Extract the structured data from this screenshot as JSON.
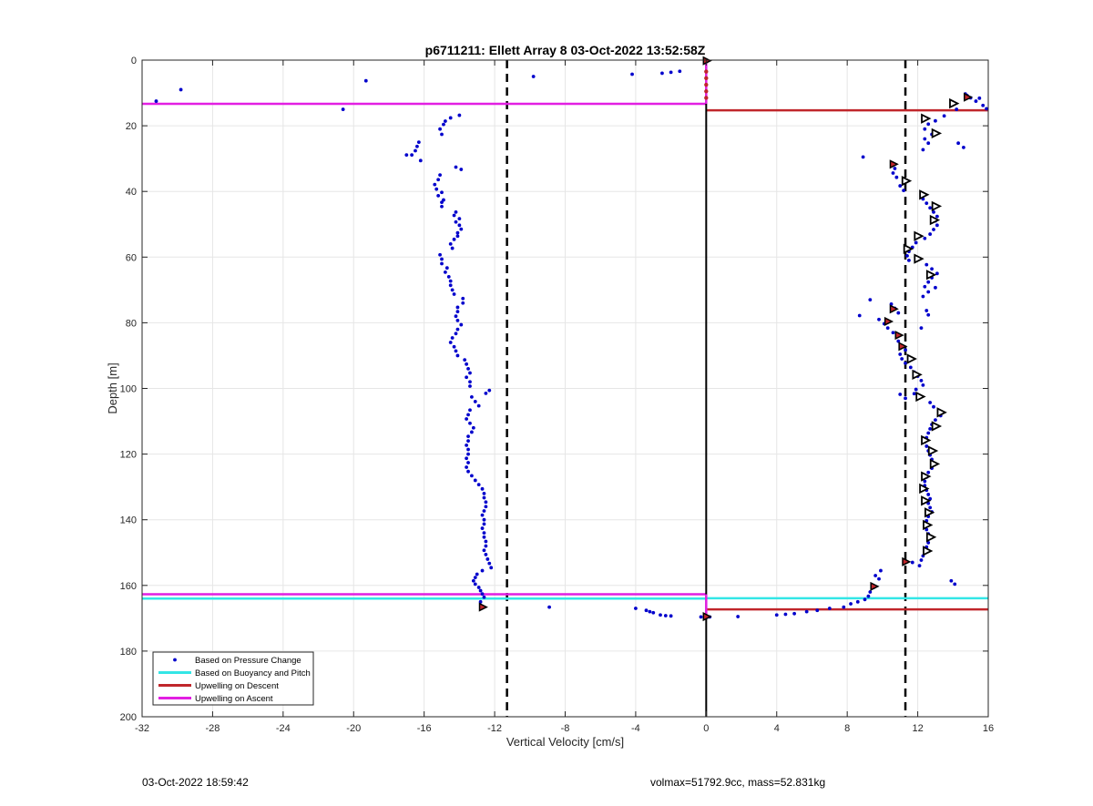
{
  "footer": {
    "timestamp": "03-Oct-2022 18:59:42",
    "info": "volmax=51792.9cc, mass=52.831kg"
  },
  "colors": {
    "pressure": "#0000cc",
    "buoyancy": "#33e6e6",
    "descent": "#c0262b",
    "ascent": "#e21fe2",
    "grid": "#e6e6e6"
  },
  "chart_data": {
    "type": "scatter",
    "title": "p6711211: Ellett Array 8 03-Oct-2022 13:52:58Z",
    "xlabel": "Vertical Velocity [cm/s]",
    "ylabel": "Depth [m]",
    "xlim": [
      -32,
      16
    ],
    "ylim": [
      0,
      200
    ],
    "y_reversed": true,
    "grid": true,
    "xticks": [
      -32,
      -28,
      -24,
      -20,
      -16,
      -12,
      -8,
      -4,
      0,
      4,
      8,
      12,
      16
    ],
    "yticks": [
      0,
      20,
      40,
      60,
      80,
      100,
      120,
      140,
      160,
      180,
      200
    ],
    "xtick_labels": [
      "-32",
      "-28",
      "-24",
      "-20",
      "-16",
      "-12",
      "-8",
      "-4",
      "0",
      "4",
      "8",
      "12",
      "16"
    ],
    "ytick_labels": [
      "0",
      "20",
      "40",
      "60",
      "80",
      "100",
      "120",
      "140",
      "160",
      "180",
      "200"
    ],
    "legend_position": "bottom-left",
    "legend": [
      {
        "label": "Based on Pressure Change",
        "style": "dot",
        "color": "#0000cc"
      },
      {
        "label": "Based on Buoyancy and Pitch",
        "style": "line",
        "color": "#33e6e6"
      },
      {
        "label": "Upwelling on Descent",
        "style": "line",
        "color": "#c0262b"
      },
      {
        "label": "Upwelling on Ascent",
        "style": "line",
        "color": "#e21fe2"
      }
    ],
    "pressure_points_ascent": [
      [
        -31.2,
        12.5
      ],
      [
        -29.8,
        9
      ],
      [
        -20.6,
        15
      ],
      [
        -19.3,
        6.3
      ],
      [
        -14.0,
        16.8
      ],
      [
        -14.5,
        17.6
      ],
      [
        -14.8,
        18.6
      ],
      [
        -14.9,
        19.6
      ],
      [
        -15.1,
        21.0
      ],
      [
        -15.0,
        22.6
      ],
      [
        -16.3,
        25.0
      ],
      [
        -16.4,
        26.3
      ],
      [
        -16.5,
        27.6
      ],
      [
        -16.7,
        28.9
      ],
      [
        -17.0,
        28.9
      ],
      [
        -16.2,
        30.6
      ],
      [
        -14.2,
        32.6
      ],
      [
        -13.9,
        33.3
      ],
      [
        -15.1,
        35.0
      ],
      [
        -15.2,
        36.4
      ],
      [
        -15.4,
        37.9
      ],
      [
        -15.3,
        39.3
      ],
      [
        -15.0,
        40.3
      ],
      [
        -15.2,
        41.3
      ],
      [
        -14.9,
        42.6
      ],
      [
        -15.0,
        43.3
      ],
      [
        -15.0,
        44.6
      ],
      [
        -14.2,
        46.3
      ],
      [
        -14.3,
        47.3
      ],
      [
        -14.0,
        48.3
      ],
      [
        -14.2,
        49.3
      ],
      [
        -14.0,
        50.3
      ],
      [
        -13.9,
        51.5
      ],
      [
        -14.1,
        52.6
      ],
      [
        -14.1,
        53.6
      ],
      [
        -14.3,
        54.6
      ],
      [
        -14.5,
        56.0
      ],
      [
        -14.4,
        57.3
      ],
      [
        -15.1,
        59.3
      ],
      [
        -15.0,
        60.6
      ],
      [
        -15.0,
        62.0
      ],
      [
        -14.7,
        63.3
      ],
      [
        -14.8,
        64.6
      ],
      [
        -14.6,
        66.0
      ],
      [
        -14.5,
        67.3
      ],
      [
        -14.5,
        68.6
      ],
      [
        -14.4,
        70.0
      ],
      [
        -14.3,
        71.3
      ],
      [
        -13.8,
        72.6
      ],
      [
        -13.8,
        74.0
      ],
      [
        -14.1,
        75.3
      ],
      [
        -14.1,
        76.6
      ],
      [
        -14.2,
        78.0
      ],
      [
        -14.1,
        79.3
      ],
      [
        -13.9,
        80.6
      ],
      [
        -14.1,
        82.0
      ],
      [
        -14.2,
        83.3
      ],
      [
        -14.4,
        84.6
      ],
      [
        -14.5,
        86.0
      ],
      [
        -14.3,
        87.3
      ],
      [
        -14.2,
        88.6
      ],
      [
        -14.1,
        90.0
      ],
      [
        -13.7,
        91.3
      ],
      [
        -13.6,
        92.6
      ],
      [
        -13.5,
        94.0
      ],
      [
        -13.4,
        95.3
      ],
      [
        -13.6,
        96.6
      ],
      [
        -13.4,
        98.0
      ],
      [
        -13.4,
        99.3
      ],
      [
        -12.3,
        100.6
      ],
      [
        -12.5,
        101.5
      ],
      [
        -13.3,
        102.6
      ],
      [
        -13.1,
        104.0
      ],
      [
        -12.9,
        105.3
      ],
      [
        -13.4,
        106.6
      ],
      [
        -13.5,
        108.0
      ],
      [
        -13.6,
        109.3
      ],
      [
        -13.4,
        110.6
      ],
      [
        -13.2,
        112.0
      ],
      [
        -13.3,
        113.3
      ],
      [
        -13.5,
        114.6
      ],
      [
        -13.5,
        116.0
      ],
      [
        -13.6,
        117.3
      ],
      [
        -13.5,
        118.6
      ],
      [
        -13.5,
        120.0
      ],
      [
        -13.6,
        121.3
      ],
      [
        -13.5,
        122.6
      ],
      [
        -13.6,
        124.0
      ],
      [
        -13.5,
        125.3
      ],
      [
        -13.3,
        126.6
      ],
      [
        -13.1,
        128.0
      ],
      [
        -12.9,
        129.3
      ],
      [
        -12.7,
        130.6
      ],
      [
        -12.6,
        132.0
      ],
      [
        -12.6,
        133.3
      ],
      [
        -12.5,
        134.6
      ],
      [
        -12.5,
        136.0
      ],
      [
        -12.6,
        137.3
      ],
      [
        -12.7,
        138.6
      ],
      [
        -12.6,
        140.0
      ],
      [
        -12.6,
        141.3
      ],
      [
        -12.7,
        142.6
      ],
      [
        -12.6,
        144.0
      ],
      [
        -12.6,
        145.3
      ],
      [
        -12.5,
        146.6
      ],
      [
        -12.5,
        148.0
      ],
      [
        -12.6,
        149.3
      ],
      [
        -12.5,
        150.6
      ],
      [
        -12.4,
        152.0
      ],
      [
        -12.3,
        153.3
      ],
      [
        -12.2,
        154.6
      ],
      [
        -12.7,
        155.5
      ],
      [
        -13.0,
        156.6
      ],
      [
        -13.1,
        157.6
      ],
      [
        -13.2,
        158.6
      ],
      [
        -13.1,
        159.6
      ],
      [
        -12.9,
        160.6
      ],
      [
        -12.8,
        161.6
      ],
      [
        -12.7,
        162.6
      ],
      [
        -12.6,
        163.6
      ],
      [
        -12.8,
        165.0
      ],
      [
        -12.7,
        166.4
      ],
      [
        -8.9,
        166.6
      ],
      [
        -4.0,
        167.0
      ],
      [
        -3.4,
        167.6
      ],
      [
        -3.2,
        168.0
      ],
      [
        -3.0,
        168.3
      ],
      [
        -2.6,
        169.0
      ],
      [
        -2.3,
        169.2
      ],
      [
        -2.0,
        169.3
      ],
      [
        -0.3,
        169.6
      ],
      [
        -9.8,
        5.0
      ],
      [
        -4.2,
        4.3
      ],
      [
        -2.5,
        4.0
      ],
      [
        -2.0,
        3.7
      ],
      [
        -1.5,
        3.4
      ]
    ],
    "pressure_points_descent": [
      [
        14.7,
        10.3
      ],
      [
        14.8,
        10.8
      ],
      [
        15.0,
        11.5
      ],
      [
        15.3,
        12.5
      ],
      [
        15.7,
        13.8
      ],
      [
        15.9,
        14.8
      ],
      [
        15.5,
        11.6
      ],
      [
        14.2,
        15.0
      ],
      [
        13.5,
        17.0
      ],
      [
        13.0,
        18.5
      ],
      [
        12.6,
        19.5
      ],
      [
        12.4,
        21.0
      ],
      [
        12.8,
        22.6
      ],
      [
        12.4,
        24.0
      ],
      [
        12.6,
        25.3
      ],
      [
        14.3,
        25.3
      ],
      [
        14.6,
        26.6
      ],
      [
        12.3,
        27.3
      ],
      [
        8.9,
        29.5
      ],
      [
        10.6,
        31.5
      ],
      [
        10.7,
        33.0
      ],
      [
        10.6,
        34.4
      ],
      [
        10.8,
        35.7
      ],
      [
        11.3,
        37.0
      ],
      [
        11.0,
        38.3
      ],
      [
        11.2,
        39.7
      ],
      [
        12.4,
        41.0
      ],
      [
        12.3,
        42.3
      ],
      [
        12.5,
        43.6
      ],
      [
        12.7,
        45.0
      ],
      [
        12.9,
        46.3
      ],
      [
        13.1,
        47.6
      ],
      [
        13.0,
        49.0
      ],
      [
        13.1,
        50.3
      ],
      [
        12.9,
        51.6
      ],
      [
        12.7,
        53.0
      ],
      [
        12.4,
        54.3
      ],
      [
        11.9,
        55.6
      ],
      [
        11.7,
        57.0
      ],
      [
        11.5,
        58.3
      ],
      [
        11.4,
        59.6
      ],
      [
        11.5,
        61.0
      ],
      [
        12.5,
        62.3
      ],
      [
        12.8,
        63.6
      ],
      [
        12.7,
        65.0
      ],
      [
        13.1,
        65.0
      ],
      [
        12.8,
        66.3
      ],
      [
        12.6,
        67.6
      ],
      [
        12.4,
        69.0
      ],
      [
        13.0,
        69.3
      ],
      [
        12.6,
        70.6
      ],
      [
        12.3,
        72.0
      ],
      [
        9.3,
        73.0
      ],
      [
        10.5,
        74.3
      ],
      [
        10.7,
        75.6
      ],
      [
        10.9,
        77.0
      ],
      [
        12.5,
        76.3
      ],
      [
        12.6,
        77.6
      ],
      [
        8.7,
        77.8
      ],
      [
        9.8,
        79.0
      ],
      [
        10.1,
        80.3
      ],
      [
        10.3,
        81.6
      ],
      [
        10.6,
        83.0
      ],
      [
        12.2,
        81.6
      ],
      [
        10.8,
        84.3
      ],
      [
        10.9,
        85.6
      ],
      [
        11.1,
        87.0
      ],
      [
        11.3,
        88.3
      ],
      [
        11.0,
        89.6
      ],
      [
        11.1,
        91.0
      ],
      [
        11.3,
        92.3
      ],
      [
        11.6,
        93.6
      ],
      [
        11.8,
        95.0
      ],
      [
        12.0,
        96.3
      ],
      [
        12.2,
        97.6
      ],
      [
        12.3,
        99.0
      ],
      [
        11.9,
        100.3
      ],
      [
        11.8,
        101.6
      ],
      [
        11.0,
        101.8
      ],
      [
        11.3,
        103.0
      ],
      [
        12.7,
        104.3
      ],
      [
        12.9,
        105.6
      ],
      [
        13.2,
        107.0
      ],
      [
        13.3,
        108.3
      ],
      [
        13.0,
        109.6
      ],
      [
        12.8,
        111.0
      ],
      [
        12.7,
        112.3
      ],
      [
        12.6,
        113.6
      ],
      [
        12.5,
        115.0
      ],
      [
        12.4,
        116.3
      ],
      [
        12.5,
        117.6
      ],
      [
        12.6,
        119.0
      ],
      [
        12.7,
        120.3
      ],
      [
        12.8,
        121.6
      ],
      [
        12.9,
        123.0
      ],
      [
        12.8,
        124.3
      ],
      [
        12.6,
        125.6
      ],
      [
        12.5,
        127.0
      ],
      [
        12.4,
        128.3
      ],
      [
        12.4,
        129.6
      ],
      [
        12.5,
        131.0
      ],
      [
        12.6,
        132.3
      ],
      [
        12.7,
        133.6
      ],
      [
        12.6,
        135.0
      ],
      [
        12.7,
        136.3
      ],
      [
        12.8,
        137.6
      ],
      [
        12.6,
        139.0
      ],
      [
        12.5,
        140.3
      ],
      [
        12.6,
        141.6
      ],
      [
        12.5,
        143.0
      ],
      [
        12.6,
        144.3
      ],
      [
        12.7,
        145.6
      ],
      [
        12.6,
        147.0
      ],
      [
        12.5,
        148.3
      ],
      [
        12.4,
        149.6
      ],
      [
        12.3,
        151.0
      ],
      [
        12.2,
        152.3
      ],
      [
        11.7,
        153.0
      ],
      [
        12.1,
        154.0
      ],
      [
        9.9,
        155.5
      ],
      [
        9.6,
        157.0
      ],
      [
        9.8,
        158.0
      ],
      [
        13.9,
        158.6
      ],
      [
        14.1,
        159.6
      ],
      [
        9.5,
        160.6
      ],
      [
        9.3,
        162.0
      ],
      [
        9.2,
        163.3
      ],
      [
        9.0,
        164.3
      ],
      [
        8.6,
        165.0
      ],
      [
        8.2,
        165.6
      ],
      [
        7.8,
        166.6
      ],
      [
        7.0,
        167.0
      ],
      [
        6.3,
        167.6
      ],
      [
        5.7,
        168.0
      ],
      [
        5.0,
        168.6
      ],
      [
        4.5,
        168.8
      ],
      [
        4.0,
        169.0
      ],
      [
        1.8,
        169.5
      ],
      [
        0.2,
        169.6
      ],
      [
        0.0,
        169.8
      ]
    ],
    "descent_markers": [
      [
        14.8,
        11.3
      ],
      [
        10.6,
        31.7
      ],
      [
        10.6,
        75.8
      ],
      [
        10.3,
        79.6
      ],
      [
        10.9,
        83.8
      ],
      [
        11.1,
        87.2
      ],
      [
        11.3,
        152.8
      ],
      [
        9.5,
        160.3
      ],
      [
        0.0,
        169.5
      ],
      [
        -12.7,
        166.6
      ],
      [
        0.0,
        0.2
      ]
    ],
    "ascent_markers": [
      [
        14.0,
        13.2
      ],
      [
        12.4,
        17.8
      ],
      [
        13.0,
        22.3
      ],
      [
        11.3,
        36.8
      ],
      [
        12.3,
        41.0
      ],
      [
        13.0,
        44.5
      ],
      [
        12.9,
        48.7
      ],
      [
        12.0,
        53.6
      ],
      [
        11.4,
        57.5
      ],
      [
        12.0,
        60.5
      ],
      [
        12.7,
        65.4
      ],
      [
        11.6,
        91.0
      ],
      [
        11.9,
        95.8
      ],
      [
        12.1,
        102.5
      ],
      [
        13.3,
        107.3
      ],
      [
        13.0,
        111.5
      ],
      [
        12.4,
        115.8
      ],
      [
        12.8,
        119.0
      ],
      [
        12.9,
        123.0
      ],
      [
        12.4,
        126.8
      ],
      [
        12.3,
        130.5
      ],
      [
        12.4,
        134.2
      ],
      [
        12.6,
        137.8
      ],
      [
        12.5,
        141.6
      ],
      [
        12.7,
        145.3
      ],
      [
        12.5,
        149.5
      ]
    ],
    "stalled_points": [
      [
        0.0,
        3.5
      ],
      [
        0.0,
        5.5
      ],
      [
        0.0,
        7.5
      ],
      [
        0.0,
        9.5
      ],
      [
        0.0,
        11.5
      ]
    ],
    "reference_lines": {
      "zero_line_x": 0,
      "dashed_x": [
        -11.3,
        11.3
      ],
      "ascent_hlines": [
        {
          "y": 13.3,
          "x_from": -32,
          "x_to": 0
        },
        {
          "y": 162.7,
          "x_from": -32,
          "x_to": 0
        }
      ],
      "descent_hlines": [
        {
          "y": 15.3,
          "x_from": 0,
          "x_to": 16
        },
        {
          "y": 167.3,
          "x_from": 0,
          "x_to": 16
        }
      ],
      "buoyancy_hlines": [
        {
          "y": 164.0,
          "x_from": -32,
          "x_to": 0
        },
        {
          "y": 163.9,
          "x_from": 0,
          "x_to": 16
        }
      ]
    }
  }
}
